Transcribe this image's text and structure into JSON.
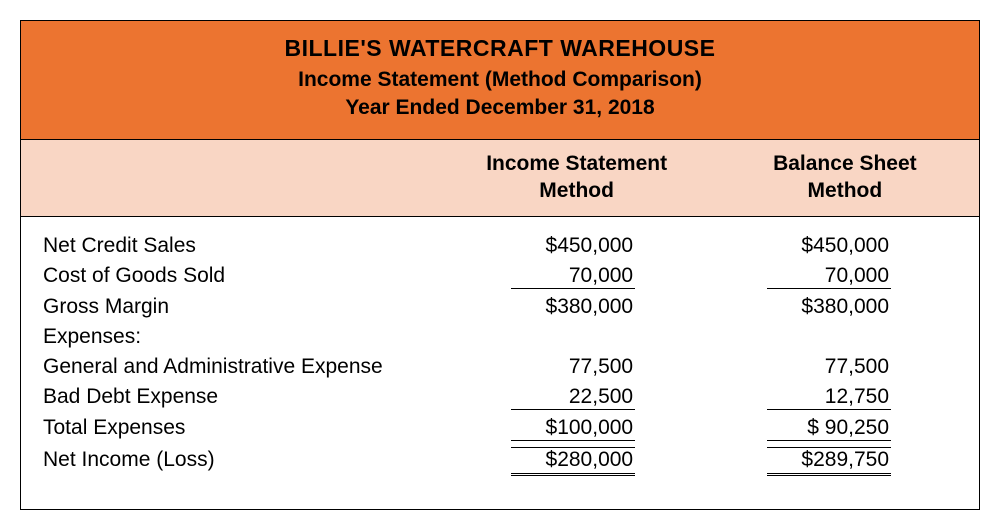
{
  "colors": {
    "header_bg": "#ec7430",
    "subhead_bg": "#f9d6c4",
    "text": "#000000",
    "border": "#000000",
    "page_bg": "#ffffff"
  },
  "company": "BILLIE'S WATERCRAFT WAREHOUSE",
  "title": "Income Statement (Method Comparison)",
  "period": "Year Ended December 31, 2018",
  "columns": {
    "c1": "Income Statement Method",
    "c2": "Balance Sheet Method"
  },
  "rows": {
    "net_credit_sales": {
      "label": "Net Credit Sales",
      "c1": "$450,000",
      "c2": "$450,000"
    },
    "cogs": {
      "label": "Cost of Goods Sold",
      "c1": "70,000",
      "c2": "70,000"
    },
    "gross_margin": {
      "label": "Gross Margin",
      "c1": "$380,000",
      "c2": "$380,000"
    },
    "expenses_hdr": {
      "label": "Expenses:"
    },
    "ga_expense": {
      "label": "General and Administrative Expense",
      "c1": "77,500",
      "c2": "77,500"
    },
    "bad_debt": {
      "label": "Bad Debt Expense",
      "c1": "22,500",
      "c2": "12,750"
    },
    "total_expenses": {
      "label": "Total Expenses",
      "c1": "$100,000",
      "c2": "$  90,250"
    },
    "net_income": {
      "label": "Net Income (Loss)",
      "c1": "$280,000",
      "c2": "$289,750"
    }
  }
}
